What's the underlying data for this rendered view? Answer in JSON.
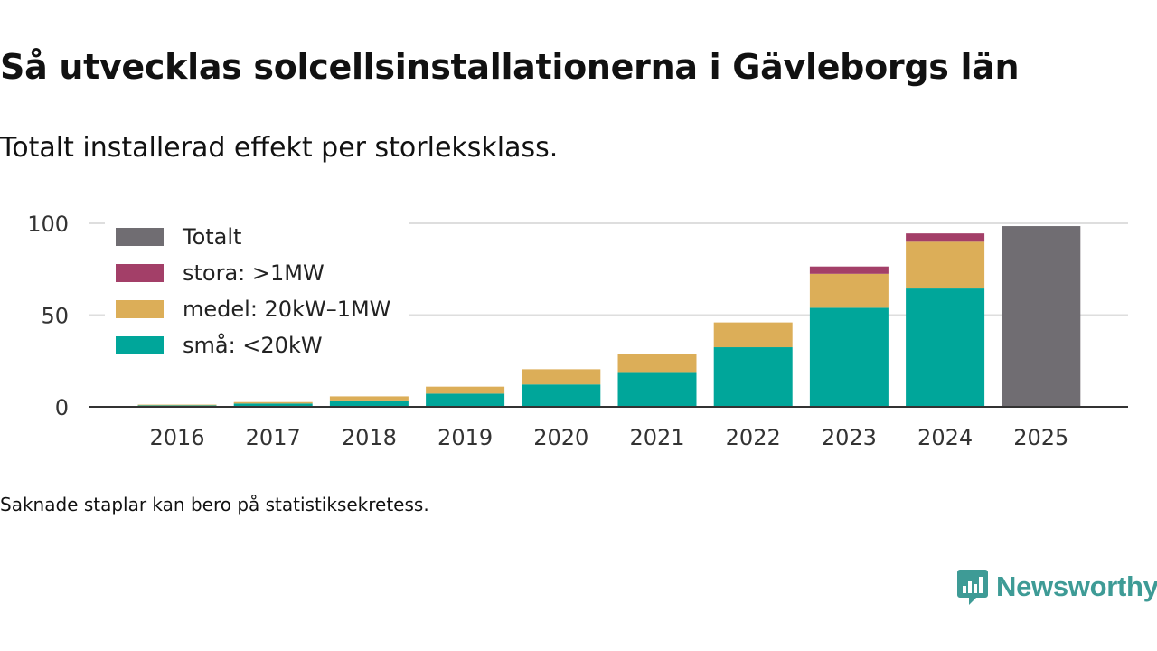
{
  "title": "Så utvecklas solcellsinstallationerna i Gävleborgs län",
  "subtitle": "Totalt installerad effekt per storleksklass.",
  "footnote": "Saknade staplar kan bero på statistiksekretess.",
  "brand": "Newsworthy",
  "colors": {
    "totalt": "#706d72",
    "stora": "#a33f68",
    "medel": "#dcae58",
    "sma": "#00a69a",
    "grid": "#dedede",
    "axis": "#333333",
    "brand": "#3e9b96"
  },
  "chart_data": {
    "type": "bar",
    "stacked": true,
    "categories": [
      "2016",
      "2017",
      "2018",
      "2019",
      "2020",
      "2021",
      "2022",
      "2023",
      "2024",
      "2025"
    ],
    "series": [
      {
        "key": "sma",
        "name": "små: <20kW",
        "values": [
          0.8,
          1.8,
          3.5,
          7.2,
          12.2,
          19.0,
          32.5,
          54.0,
          64.5,
          null
        ]
      },
      {
        "key": "medel",
        "name": "medel: 20kW–1MW",
        "values": [
          0.4,
          0.8,
          2.2,
          3.8,
          8.3,
          10.0,
          13.5,
          18.5,
          25.5,
          null
        ]
      },
      {
        "key": "stora",
        "name": "stora: >1MW",
        "values": [
          0,
          0,
          0,
          0,
          0,
          0,
          0,
          4.0,
          4.5,
          null
        ]
      },
      {
        "key": "totalt",
        "name": "Totalt",
        "values": [
          null,
          null,
          null,
          null,
          null,
          null,
          null,
          null,
          null,
          98.5
        ]
      }
    ],
    "legend_order": [
      "totalt",
      "stora",
      "medel",
      "sma"
    ],
    "yticks": [
      0,
      50,
      100
    ],
    "ylim": [
      0,
      100
    ],
    "xlabel": "",
    "ylabel": "",
    "legend_position": "top-left"
  }
}
